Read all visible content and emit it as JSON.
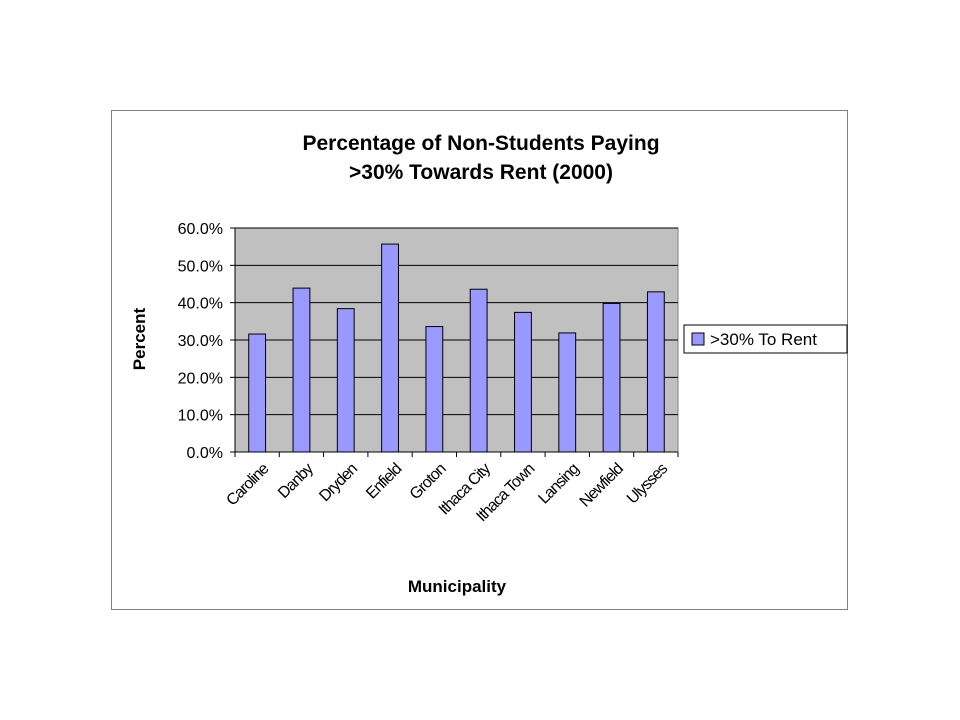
{
  "chart_data": {
    "type": "bar",
    "title_lines": [
      "Percentage of Non-Students Paying",
      ">30% Towards Rent (2000)"
    ],
    "xlabel": "Municipality",
    "ylabel": "Percent",
    "categories": [
      "Caroline",
      "Danby",
      "Dryden",
      "Enfield",
      "Groton",
      "Ithaca City",
      "Ithaca Town",
      "Lansing",
      "Newfield",
      "Ulysses"
    ],
    "series": [
      {
        "name": ">30% To Rent",
        "values": [
          31.6,
          43.9,
          38.4,
          55.7,
          33.6,
          43.6,
          37.4,
          31.9,
          39.8,
          42.9
        ]
      }
    ],
    "ylim": [
      0,
      60
    ],
    "yticks": [
      "0.0%",
      "10.0%",
      "20.0%",
      "30.0%",
      "40.0%",
      "50.0%",
      "60.0%"
    ],
    "grid": true,
    "legend_position": "right",
    "colors": {
      "bar_fill": "#9999ff",
      "bar_stroke": "#000000",
      "plot_background": "#c0c0c0",
      "gridline": "#000000"
    }
  }
}
